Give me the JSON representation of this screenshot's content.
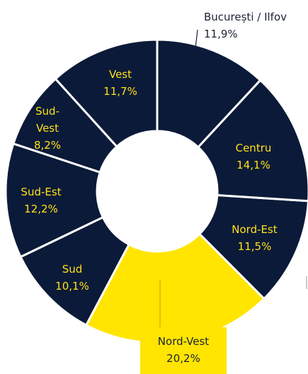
{
  "chart_data": {
    "type": "pie",
    "categories": [
      "București / Ilfov",
      "Centru",
      "Nord-Est",
      "Nord-Vest",
      "Sud",
      "Sud-Est",
      "Sud-Vest",
      "Vest"
    ],
    "values": [
      11.9,
      14.1,
      11.5,
      20.2,
      10.1,
      12.2,
      8.2,
      11.7
    ],
    "value_labels": [
      "11,9%",
      "14,1%",
      "11,5%",
      "20,2%",
      "10,1%",
      "12,2%",
      "8,2%",
      "11,7%"
    ],
    "colors": [
      "#0b1a38",
      "#0b1a38",
      "#0b1a38",
      "#ffe500",
      "#0b1a38",
      "#0b1a38",
      "#0b1a38",
      "#0b1a38"
    ]
  }
}
